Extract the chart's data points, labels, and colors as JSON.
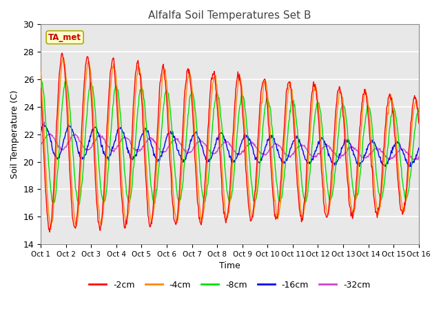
{
  "title": "Alfalfa Soil Temperatures Set B",
  "xlabel": "Time",
  "ylabel": "Soil Temperature (C)",
  "ylim": [
    14,
    30
  ],
  "xlim": [
    0,
    15
  ],
  "xtick_labels": [
    "Oct 1",
    "Oct 2",
    "Oct 3",
    "Oct 4",
    "Oct 5",
    "Oct 6",
    "Oct 7",
    "Oct 8",
    "Oct 9",
    "Oct 10",
    "Oct 11",
    "Oct 12",
    "Oct 13",
    "Oct 14",
    "Oct 15",
    "Oct 16"
  ],
  "fig_bg": "#ffffff",
  "axes_bg": "#e8e8e8",
  "annotation_text": "TA_met",
  "annotation_bg": "#ffffcc",
  "annotation_border": "#aaaa00",
  "annotation_text_color": "#cc0000",
  "legend_entries": [
    "-2cm",
    "-4cm",
    "-8cm",
    "-16cm",
    "-32cm"
  ],
  "line_colors": [
    "#ff0000",
    "#ff8800",
    "#00dd00",
    "#0000ee",
    "#cc44cc"
  ],
  "grid_color": "#ffffff"
}
